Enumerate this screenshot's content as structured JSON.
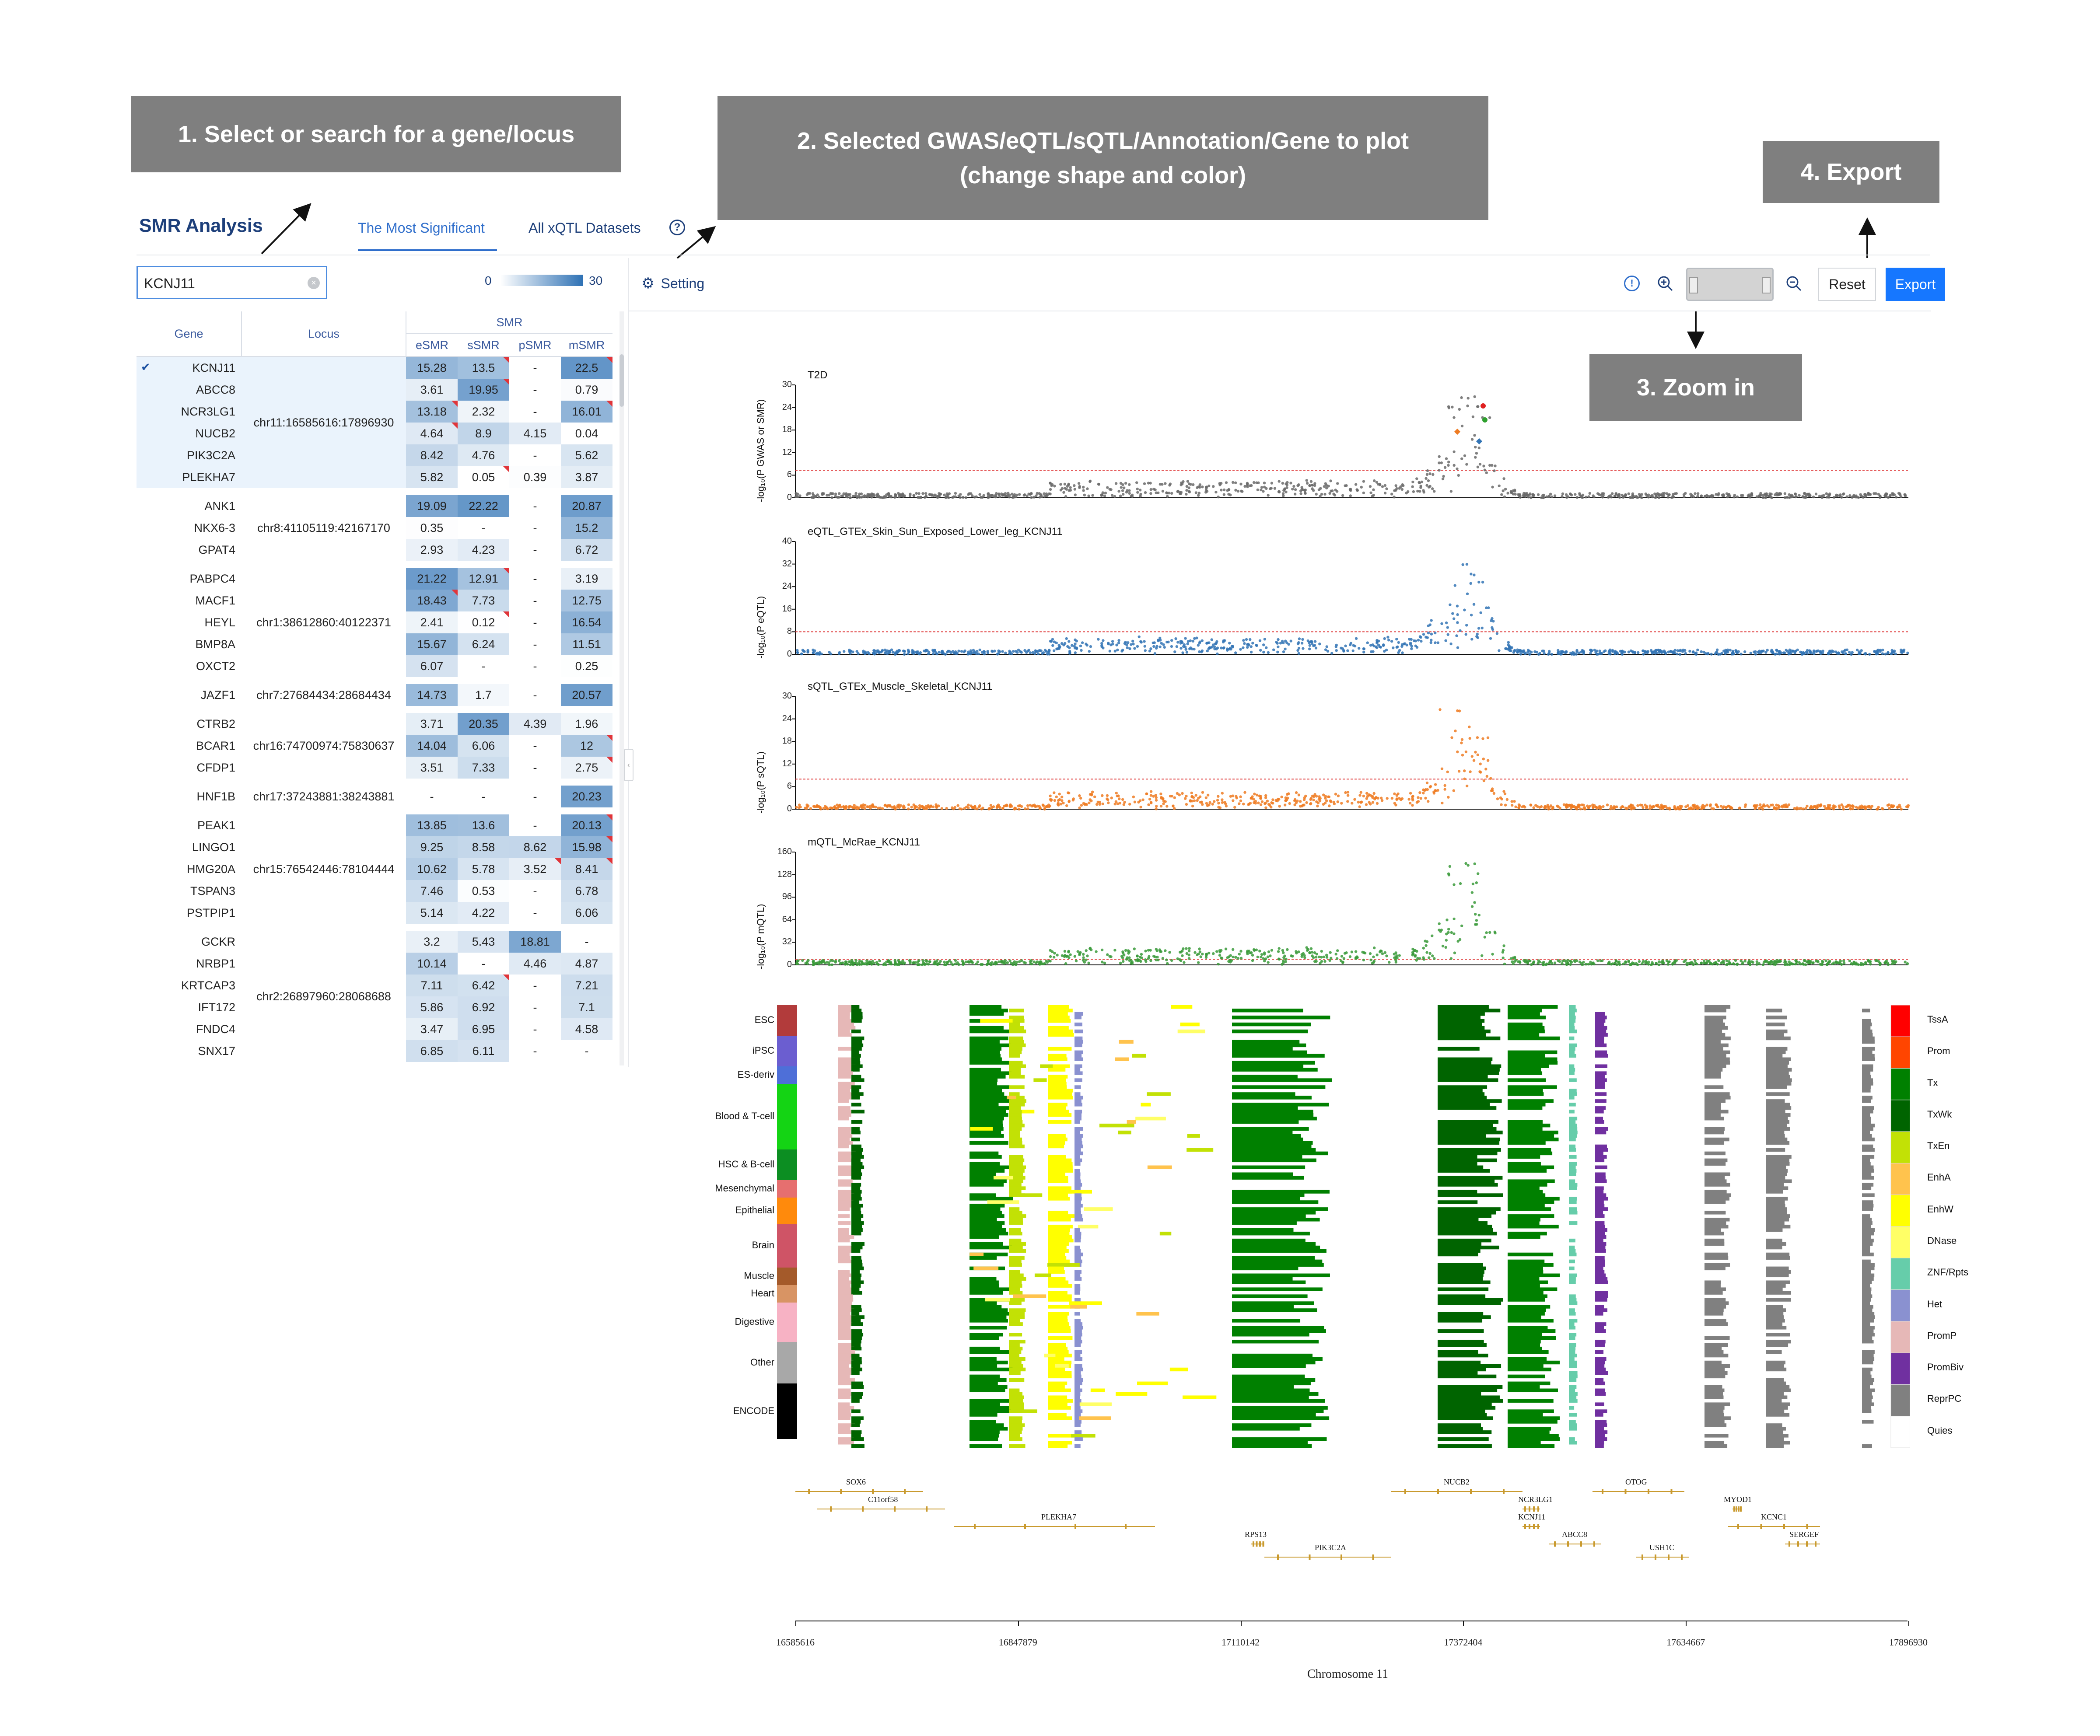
{
  "callouts": {
    "c1": {
      "lines": [
        "1. Select or search for a gene/locus"
      ]
    },
    "c2": {
      "lines": [
        "2. Selected GWAS/eQTL/sQTL/Annotation/Gene to plot",
        "(change shape and color)"
      ]
    },
    "c3": {
      "lines": [
        "3. Zoom in"
      ]
    },
    "c4": {
      "lines": [
        "4. Export"
      ]
    }
  },
  "header": {
    "app_title": "SMR Analysis",
    "tabs": [
      {
        "label": "The Most Significant",
        "active": true
      },
      {
        "label": "All xQTL Datasets",
        "active": false
      }
    ],
    "help_icon": "question-circle-icon"
  },
  "search": {
    "value": "KCNJ11",
    "clear_icon": "clear-circle-icon"
  },
  "scale": {
    "min": "0",
    "max": "30",
    "color_low": "#ffffff",
    "color_high": "#2f72b5"
  },
  "table": {
    "headers": {
      "gene": "Gene",
      "locus": "Locus",
      "group": "SMR",
      "cols": [
        "eSMR",
        "sSMR",
        "pSMR",
        "mSMR"
      ]
    },
    "groups": [
      {
        "locus": "chr11:16585616:17896930",
        "highlight": true,
        "rows": [
          {
            "gene": "KCNJ11",
            "checked": true,
            "vals": [
              "15.28",
              "13.5",
              "-",
              "22.5"
            ],
            "flags": [
              0,
              1,
              0,
              1
            ]
          },
          {
            "gene": "ABCC8",
            "vals": [
              "3.61",
              "19.95",
              "-",
              "0.79"
            ],
            "flags": [
              0,
              1,
              0,
              0
            ]
          },
          {
            "gene": "NCR3LG1",
            "vals": [
              "13.18",
              "2.32",
              "-",
              "16.01"
            ],
            "flags": [
              1,
              0,
              0,
              1
            ]
          },
          {
            "gene": "NUCB2",
            "vals": [
              "4.64",
              "8.9",
              "4.15",
              "0.04"
            ],
            "flags": [
              1,
              0,
              0,
              0
            ]
          },
          {
            "gene": "PIK3C2A",
            "vals": [
              "8.42",
              "4.76",
              "-",
              "5.62"
            ],
            "flags": [
              0,
              0,
              0,
              0
            ]
          },
          {
            "gene": "PLEKHA7",
            "vals": [
              "5.82",
              "0.05",
              "0.39",
              "3.87"
            ],
            "flags": [
              0,
              1,
              0,
              0
            ]
          }
        ]
      },
      {
        "locus": "chr8:41105119:42167170",
        "rows": [
          {
            "gene": "ANK1",
            "vals": [
              "19.09",
              "22.22",
              "-",
              "20.87"
            ],
            "flags": [
              0,
              0,
              0,
              0
            ]
          },
          {
            "gene": "NKX6-3",
            "vals": [
              "0.35",
              "-",
              "-",
              "15.2"
            ],
            "flags": [
              0,
              0,
              0,
              0
            ]
          },
          {
            "gene": "GPAT4",
            "vals": [
              "2.93",
              "4.23",
              "-",
              "6.72"
            ],
            "flags": [
              0,
              0,
              0,
              0
            ]
          }
        ]
      },
      {
        "locus": "chr1:38612860:40122371",
        "rows": [
          {
            "gene": "PABPC4",
            "vals": [
              "21.22",
              "12.91",
              "-",
              "3.19"
            ],
            "flags": [
              0,
              1,
              0,
              0
            ]
          },
          {
            "gene": "MACF1",
            "vals": [
              "18.43",
              "7.73",
              "-",
              "12.75"
            ],
            "flags": [
              1,
              0,
              0,
              0
            ]
          },
          {
            "gene": "HEYL",
            "vals": [
              "2.41",
              "0.12",
              "-",
              "16.54"
            ],
            "flags": [
              0,
              1,
              0,
              0
            ]
          },
          {
            "gene": "BMP8A",
            "vals": [
              "15.67",
              "6.24",
              "-",
              "11.51"
            ],
            "flags": [
              0,
              0,
              0,
              0
            ]
          },
          {
            "gene": "OXCT2",
            "vals": [
              "6.07",
              "-",
              "-",
              "0.25"
            ],
            "flags": [
              0,
              0,
              0,
              0
            ]
          }
        ]
      },
      {
        "locus": "chr7:27684434:28684434",
        "rows": [
          {
            "gene": "JAZF1",
            "vals": [
              "14.73",
              "1.7",
              "-",
              "20.57"
            ],
            "flags": [
              0,
              0,
              0,
              0
            ]
          }
        ]
      },
      {
        "locus": "chr16:74700974:75830637",
        "rows": [
          {
            "gene": "CTRB2",
            "vals": [
              "3.71",
              "20.35",
              "4.39",
              "1.96"
            ],
            "flags": [
              0,
              0,
              0,
              0
            ]
          },
          {
            "gene": "BCAR1",
            "vals": [
              "14.04",
              "6.06",
              "-",
              "12"
            ],
            "flags": [
              0,
              0,
              0,
              1
            ]
          },
          {
            "gene": "CFDP1",
            "vals": [
              "3.51",
              "7.33",
              "-",
              "2.75"
            ],
            "flags": [
              0,
              0,
              0,
              1
            ]
          }
        ]
      },
      {
        "locus": "chr17:37243881:38243881",
        "rows": [
          {
            "gene": "HNF1B",
            "vals": [
              "-",
              "-",
              "-",
              "20.23"
            ],
            "flags": [
              0,
              0,
              0,
              0
            ]
          }
        ]
      },
      {
        "locus": "chr15:76542446:78104444",
        "rows": [
          {
            "gene": "PEAK1",
            "vals": [
              "13.85",
              "13.6",
              "-",
              "20.13"
            ],
            "flags": [
              0,
              0,
              0,
              1
            ]
          },
          {
            "gene": "LINGO1",
            "vals": [
              "9.25",
              "8.58",
              "8.62",
              "15.98"
            ],
            "flags": [
              0,
              0,
              0,
              1
            ]
          },
          {
            "gene": "HMG20A",
            "vals": [
              "10.62",
              "5.78",
              "3.52",
              "8.41"
            ],
            "flags": [
              0,
              0,
              1,
              1
            ]
          },
          {
            "gene": "TSPAN3",
            "vals": [
              "7.46",
              "0.53",
              "-",
              "6.78"
            ],
            "flags": [
              0,
              0,
              0,
              0
            ]
          },
          {
            "gene": "PSTPIP1",
            "vals": [
              "5.14",
              "4.22",
              "-",
              "6.06"
            ],
            "flags": [
              0,
              0,
              0,
              0
            ]
          }
        ]
      },
      {
        "locus": "chr2:26897960:28068688",
        "rows": [
          {
            "gene": "GCKR",
            "vals": [
              "3.2",
              "5.43",
              "18.81",
              "-"
            ],
            "flags": [
              0,
              0,
              0,
              0
            ]
          },
          {
            "gene": "NRBP1",
            "vals": [
              "10.14",
              "-",
              "4.46",
              "4.87"
            ],
            "flags": [
              0,
              0,
              0,
              0
            ]
          },
          {
            "gene": "KRTCAP3",
            "vals": [
              "7.11",
              "6.42",
              "-",
              "7.21"
            ],
            "flags": [
              0,
              1,
              0,
              0
            ]
          },
          {
            "gene": "IFT172",
            "vals": [
              "5.86",
              "6.92",
              "-",
              "7.1"
            ],
            "flags": [
              0,
              0,
              0,
              0
            ]
          },
          {
            "gene": "FNDC4",
            "vals": [
              "3.47",
              "6.95",
              "-",
              "4.58"
            ],
            "flags": [
              0,
              0,
              0,
              0
            ]
          },
          {
            "gene": "SNX17",
            "vals": [
              "6.85",
              "6.11",
              "-",
              "-"
            ],
            "flags": [
              0,
              0,
              0,
              0
            ]
          }
        ]
      }
    ]
  },
  "toolbar": {
    "setting_label": "Setting",
    "setting_icon": "gear-icon",
    "info_icon": "info-circle-icon",
    "zoom_in_icon": "zoom-in-icon",
    "zoom_out_icon": "zoom-out-icon",
    "reset_label": "Reset",
    "export_label": "Export"
  },
  "plots": {
    "x_ticks": [
      "16585616",
      "16847879",
      "17110142",
      "17372404",
      "17634667",
      "17896930"
    ],
    "x_label": "Chromosome 11",
    "panels": [
      {
        "title": "T2D",
        "ylabel": "-log₁₀(P GWAS or SMR)",
        "yticks": [
          "0",
          "6",
          "12",
          "18",
          "24",
          "30"
        ],
        "ymax": 30,
        "threshold": 7.3,
        "color": "#6a6a6a"
      },
      {
        "title": "eQTL_GTEx_Skin_Sun_Exposed_Lower_leg_KCNJ11",
        "ylabel": "-log₁₀(P eQTL)",
        "yticks": [
          "0",
          "8",
          "16",
          "24",
          "32",
          "40"
        ],
        "ymax": 40,
        "threshold": 8,
        "color": "#3274b5"
      },
      {
        "title": "sQTL_GTEx_Muscle_Skeletal_KCNJ11",
        "ylabel": "-log₁₀(P sQTL)",
        "yticks": [
          "0",
          "6",
          "12",
          "18",
          "24",
          "30"
        ],
        "ymax": 30,
        "threshold": 8,
        "color": "#ee7b22"
      },
      {
        "title": "mQTL_McRae_KCNJ11",
        "ylabel": "-log₁₀(P mQTL)",
        "yticks": [
          "0",
          "32",
          "64",
          "96",
          "128",
          "160"
        ],
        "ymax": 160,
        "threshold": 8,
        "color": "#3a9a3a"
      }
    ]
  },
  "annotation": {
    "cell_groups": [
      {
        "label": "ESC",
        "color": "#b23b3b"
      },
      {
        "label": "iPSC",
        "color": "#6b5ed0"
      },
      {
        "label": "ES-deriv",
        "color": "#4e6fd8"
      },
      {
        "label": "Blood & T-cell",
        "color": "#14d414"
      },
      {
        "label": "HSC & B-cell",
        "color": "#0c8e22"
      },
      {
        "label": "Mesenchymal",
        "color": "#e66f6f"
      },
      {
        "label": "Epithelial",
        "color": "#ff8a0c"
      },
      {
        "label": "Brain",
        "color": "#cf5466"
      },
      {
        "label": "Muscle",
        "color": "#a45a2a"
      },
      {
        "label": "Heart",
        "color": "#d89464"
      },
      {
        "label": "Digestive",
        "color": "#f7b2c4"
      },
      {
        "label": "Other",
        "color": "#a8a8a8"
      },
      {
        "label": "ENCODE",
        "color": "#000000"
      }
    ],
    "states": [
      {
        "label": "TssA",
        "color": "#ff0000"
      },
      {
        "label": "Prom",
        "color": "#ff4500"
      },
      {
        "label": "Tx",
        "color": "#008000"
      },
      {
        "label": "TxWk",
        "color": "#006400"
      },
      {
        "label": "TxEn",
        "color": "#c2e105"
      },
      {
        "label": "EnhA",
        "color": "#ffc34d"
      },
      {
        "label": "EnhW",
        "color": "#ffff00"
      },
      {
        "label": "DNase",
        "color": "#ffff66"
      },
      {
        "label": "ZNF/Rpts",
        "color": "#66cdaa"
      },
      {
        "label": "Het",
        "color": "#8a91d0"
      },
      {
        "label": "PromP",
        "color": "#e6b8b7"
      },
      {
        "label": "PromBiv",
        "color": "#7030a0"
      },
      {
        "label": "ReprPC",
        "color": "#808080"
      },
      {
        "label": "Quies",
        "color": "#ffffff"
      }
    ]
  },
  "genes": [
    "SOX6",
    "C11orf58",
    "PLEKHA7",
    "RPS13",
    "PIK3C2A",
    "NUCB2",
    "NCR3LG1",
    "KCNJ11",
    "ABCC8",
    "USH1C",
    "OTOG",
    "MYOD1",
    "KCNC1",
    "SERGEF"
  ]
}
